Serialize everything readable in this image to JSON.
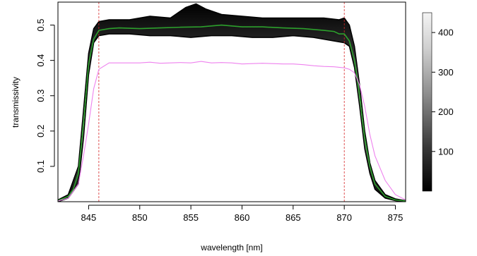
{
  "chart_data": {
    "type": "line",
    "xlabel": "wavelength [nm]",
    "ylabel": "transmissivity",
    "xlim": [
      842.0,
      876.0
    ],
    "ylim": [
      0.0,
      0.565
    ],
    "x_ticks": [
      845,
      850,
      855,
      860,
      865,
      870,
      875
    ],
    "y_ticks": [
      0.1,
      0.2,
      0.3,
      0.4,
      0.5
    ],
    "vlines": [
      846.0,
      870.0
    ],
    "vline_color": "#d62728",
    "density": {
      "description_free": true,
      "colorbar_ticks": [
        100,
        200,
        300,
        400
      ],
      "colorbar_max": 450,
      "upper_envelope": {
        "x": [
          842.0,
          843.0,
          844.0,
          844.5,
          845.0,
          845.5,
          846.0,
          847.0,
          849.0,
          851.0,
          853.0,
          854.5,
          855.5,
          856.5,
          858.0,
          860.0,
          862.0,
          864.0,
          866.0,
          868.0,
          869.5,
          870.0,
          870.5,
          871.0,
          871.5,
          872.0,
          872.5,
          873.0,
          874.0,
          875.0,
          876.0
        ],
        "y": [
          0.005,
          0.02,
          0.1,
          0.26,
          0.42,
          0.49,
          0.51,
          0.515,
          0.515,
          0.525,
          0.52,
          0.55,
          0.56,
          0.545,
          0.53,
          0.525,
          0.52,
          0.52,
          0.52,
          0.52,
          0.515,
          0.52,
          0.5,
          0.44,
          0.33,
          0.2,
          0.11,
          0.06,
          0.02,
          0.008,
          0.003
        ]
      },
      "lower_envelope": {
        "x": [
          842.0,
          843.0,
          844.0,
          844.5,
          845.0,
          845.5,
          846.0,
          847.0,
          849.0,
          851.0,
          853.0,
          855.0,
          857.0,
          859.0,
          861.0,
          863.0,
          865.0,
          867.0,
          869.0,
          870.0,
          870.5,
          871.0,
          871.5,
          872.0,
          872.5,
          873.0,
          874.0,
          875.0,
          876.0
        ],
        "y": [
          0.0,
          0.01,
          0.05,
          0.18,
          0.36,
          0.45,
          0.47,
          0.475,
          0.475,
          0.47,
          0.47,
          0.465,
          0.47,
          0.47,
          0.465,
          0.465,
          0.47,
          0.465,
          0.455,
          0.45,
          0.44,
          0.38,
          0.27,
          0.15,
          0.08,
          0.035,
          0.01,
          0.003,
          0.0
        ]
      }
    },
    "series": [
      {
        "color": "#2ca02c",
        "x": [
          842.0,
          843.0,
          843.5,
          844.0,
          844.5,
          845.0,
          845.5,
          846.0,
          847.0,
          848.0,
          850.0,
          852.0,
          854.0,
          856.0,
          858.0,
          860.0,
          862.0,
          864.0,
          866.0,
          868.0,
          869.0,
          869.5,
          870.0,
          870.5,
          871.0,
          871.5,
          872.0,
          872.5,
          873.0,
          874.0,
          875.0,
          876.0
        ],
        "y": [
          0.003,
          0.015,
          0.035,
          0.08,
          0.22,
          0.39,
          0.46,
          0.485,
          0.49,
          0.492,
          0.49,
          0.492,
          0.494,
          0.495,
          0.5,
          0.495,
          0.495,
          0.492,
          0.49,
          0.485,
          0.482,
          0.475,
          0.475,
          0.455,
          0.4,
          0.3,
          0.18,
          0.1,
          0.05,
          0.015,
          0.005,
          0.002
        ]
      },
      {
        "color": "#ee82ee",
        "x": [
          842.0,
          843.0,
          844.0,
          844.5,
          845.0,
          845.5,
          846.0,
          847.0,
          848.0,
          849.0,
          850.0,
          851.0,
          852.0,
          853.0,
          854.0,
          855.0,
          856.0,
          857.0,
          858.0,
          859.0,
          860.0,
          861.0,
          862.0,
          863.0,
          864.0,
          865.0,
          866.0,
          867.0,
          868.0,
          869.0,
          870.0,
          870.5,
          871.0,
          871.5,
          872.0,
          872.5,
          873.0,
          874.0,
          875.0,
          876.0
        ],
        "y": [
          0.002,
          0.01,
          0.05,
          0.13,
          0.22,
          0.32,
          0.375,
          0.393,
          0.393,
          0.393,
          0.393,
          0.395,
          0.392,
          0.393,
          0.394,
          0.393,
          0.397,
          0.393,
          0.394,
          0.393,
          0.39,
          0.391,
          0.392,
          0.391,
          0.39,
          0.39,
          0.388,
          0.385,
          0.383,
          0.382,
          0.379,
          0.375,
          0.365,
          0.33,
          0.27,
          0.19,
          0.13,
          0.06,
          0.02,
          0.005
        ]
      }
    ]
  }
}
